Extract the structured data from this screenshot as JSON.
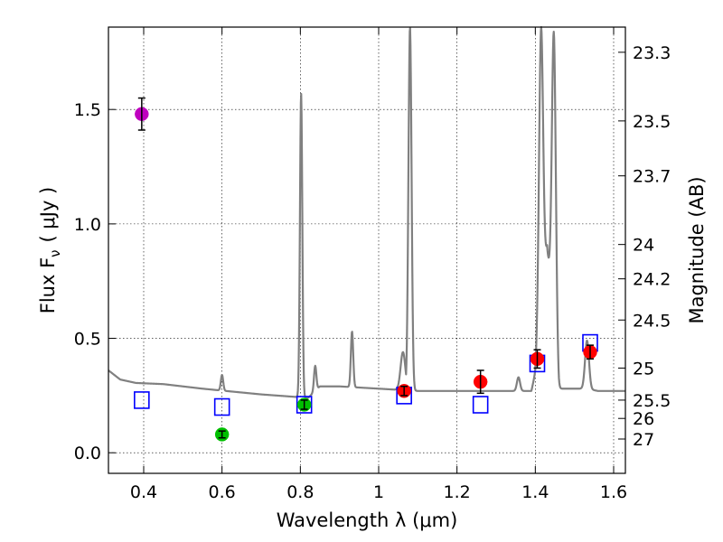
{
  "chart_data": {
    "type": "scatter",
    "xlabel": "Wavelength  λ (μm)",
    "ylabel": "Flux  F",
    "ylabel_sub": "ν",
    "ylabel_units": "( μJy )",
    "y2label": "Magnitude (AB)",
    "xlim": [
      0.31,
      1.63
    ],
    "ylim": [
      -0.09,
      1.86
    ],
    "grid": true,
    "x_ticks": [
      0.4,
      0.6,
      0.8,
      1.0,
      1.2,
      1.4,
      1.6
    ],
    "x_tick_labels": [
      "0.4",
      "0.6",
      "0.8",
      "1",
      "1.2",
      "1.4",
      "1.6"
    ],
    "y_ticks": [
      0.0,
      0.5,
      1.0,
      1.5
    ],
    "y_tick_labels": [
      "0.0",
      "0.5",
      "1.0",
      "1.5"
    ],
    "mag_ticks": [
      {
        "label": "23.3",
        "flux": 1.75
      },
      {
        "label": "23.5",
        "flux": 1.45
      },
      {
        "label": "23.7",
        "flux": 1.21
      },
      {
        "label": "24",
        "flux": 0.91
      },
      {
        "label": "24.2",
        "flux": 0.76
      },
      {
        "label": "24.5",
        "flux": 0.58
      },
      {
        "label": "25",
        "flux": 0.37
      },
      {
        "label": "25.5",
        "flux": 0.23
      },
      {
        "label": "26",
        "flux": 0.15
      },
      {
        "label": "27",
        "flux": 0.06
      }
    ],
    "series": [
      {
        "name": "model spectrum",
        "kind": "line",
        "color": "#808080",
        "continuum": [
          [
            0.31,
            0.36
          ],
          [
            0.34,
            0.32
          ],
          [
            0.38,
            0.305
          ],
          [
            0.45,
            0.3
          ],
          [
            0.55,
            0.28
          ],
          [
            0.7,
            0.255
          ],
          [
            0.82,
            0.24
          ],
          [
            0.85,
            0.29
          ],
          [
            0.9,
            0.29
          ],
          [
            1.0,
            0.28
          ],
          [
            1.1,
            0.27
          ],
          [
            1.3,
            0.27
          ],
          [
            1.39,
            0.27
          ],
          [
            1.4,
            0.35
          ],
          [
            1.41,
            0.6
          ],
          [
            1.43,
            0.9
          ],
          [
            1.46,
            0.28
          ],
          [
            1.53,
            0.28
          ],
          [
            1.56,
            0.27
          ],
          [
            1.63,
            0.27
          ]
        ],
        "lines": [
          {
            "center": 0.6,
            "peak": 0.34,
            "width": 0.003
          },
          {
            "center": 0.802,
            "peak": 1.57,
            "width": 0.003
          },
          {
            "center": 0.838,
            "peak": 0.38,
            "width": 0.003
          },
          {
            "center": 0.932,
            "peak": 0.53,
            "width": 0.003
          },
          {
            "center": 1.062,
            "peak": 0.44,
            "width": 0.006
          },
          {
            "center": 1.08,
            "peak": 1.86,
            "width": 0.004
          },
          {
            "center": 1.357,
            "peak": 0.33,
            "width": 0.004
          },
          {
            "center": 1.415,
            "peak": 1.86,
            "width": 0.005
          },
          {
            "center": 1.447,
            "peak": 1.84,
            "width": 0.005
          },
          {
            "center": 1.532,
            "peak": 0.49,
            "width": 0.005
          }
        ]
      },
      {
        "name": "model band fluxes",
        "kind": "open-square",
        "color": "#0000ff",
        "points": [
          {
            "x": 0.395,
            "y": 0.23
          },
          {
            "x": 0.6,
            "y": 0.2
          },
          {
            "x": 0.81,
            "y": 0.21
          },
          {
            "x": 1.065,
            "y": 0.25
          },
          {
            "x": 1.26,
            "y": 0.21
          },
          {
            "x": 1.405,
            "y": 0.39
          },
          {
            "x": 1.54,
            "y": 0.48
          }
        ]
      },
      {
        "name": "magenta point",
        "kind": "marker",
        "color": "#bf00bf",
        "points": [
          {
            "x": 0.395,
            "y": 1.48,
            "err": 0.07
          }
        ]
      },
      {
        "name": "green points",
        "kind": "marker",
        "color": "#00bf00",
        "points": [
          {
            "x": 0.6,
            "y": 0.08,
            "err": 0.015
          },
          {
            "x": 0.81,
            "y": 0.21,
            "err": 0.02
          }
        ]
      },
      {
        "name": "red points",
        "kind": "marker",
        "color": "#ff0000",
        "points": [
          {
            "x": 1.065,
            "y": 0.27,
            "err": 0.02
          },
          {
            "x": 1.26,
            "y": 0.31,
            "err": 0.05
          },
          {
            "x": 1.405,
            "y": 0.41,
            "err": 0.04
          },
          {
            "x": 1.54,
            "y": 0.44,
            "err": 0.03
          }
        ]
      }
    ]
  }
}
